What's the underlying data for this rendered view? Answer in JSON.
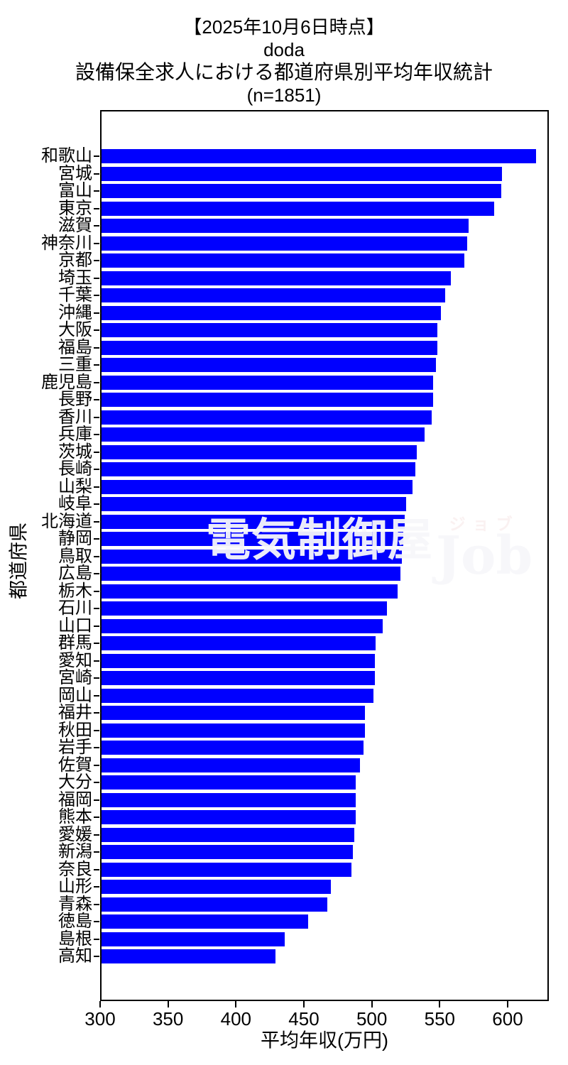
{
  "title": {
    "lines": [
      "【2025年10月6日時点】",
      "doda",
      "設備保全求人における都道府県別平均年収統計",
      "(n=1851)"
    ]
  },
  "watermark": {
    "kanji": "電気制御屋",
    "ruby": "ジョブ",
    "latin": "Job"
  },
  "chart_data": {
    "type": "bar",
    "orientation": "horizontal",
    "title": "【2025年10月6日時点】 doda 設備保全求人における都道府県別平均年収統計 (n=1851)",
    "xlabel": "平均年収(万円)",
    "ylabel": "都道府県",
    "xlim": [
      300,
      630
    ],
    "xticks": [
      300,
      350,
      400,
      450,
      500,
      550,
      600
    ],
    "grid": false,
    "legend": false,
    "bar_color": "#0000ff",
    "categories": [
      "和歌山",
      "宮城",
      "富山",
      "東京",
      "滋賀",
      "神奈川",
      "京都",
      "埼玉",
      "千葉",
      "沖縄",
      "大阪",
      "福島",
      "三重",
      "鹿児島",
      "長野",
      "香川",
      "兵庫",
      "茨城",
      "長崎",
      "山梨",
      "岐阜",
      "北海道",
      "静岡",
      "鳥取",
      "広島",
      "栃木",
      "石川",
      "山口",
      "群馬",
      "愛知",
      "宮崎",
      "岡山",
      "福井",
      "秋田",
      "岩手",
      "佐賀",
      "大分",
      "福岡",
      "熊本",
      "愛媛",
      "新潟",
      "奈良",
      "山形",
      "青森",
      "徳島",
      "島根",
      "高知"
    ],
    "values": [
      620,
      595,
      594,
      589,
      570,
      569,
      567,
      557,
      553,
      550,
      547,
      547,
      546,
      544,
      544,
      543,
      538,
      532,
      531,
      529,
      524,
      523,
      522,
      521,
      520,
      518,
      510,
      507,
      502,
      501,
      501,
      500,
      494,
      494,
      493,
      490,
      487,
      487,
      487,
      486,
      485,
      484,
      469,
      466,
      452,
      435,
      428
    ]
  }
}
